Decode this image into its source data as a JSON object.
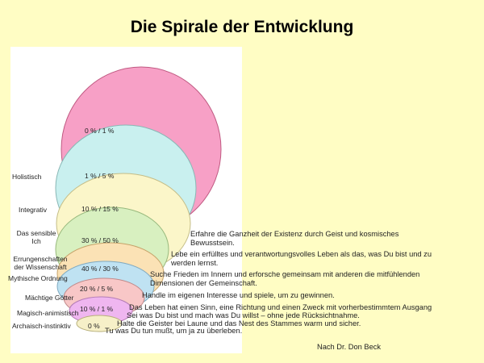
{
  "title": "Die Spirale der Entwicklung",
  "credit": "Nach Dr. Don Beck",
  "levels": [
    {
      "label": "",
      "percent": "0 % / 1 %",
      "color": "#f7a0c6",
      "description": [
        "Erfahre die Ganzheit der Existenz durch Geist und kosmisches",
        "Bewusstsein."
      ]
    },
    {
      "label": "Holistisch",
      "percent": "1 % / 5 %",
      "color": "#c9f0ef",
      "description": [
        "Lebe ein erfülltes und verantwortungsvolles Leben als das, was Du bist und zu",
        "werden lernst."
      ]
    },
    {
      "label": "Integrativ",
      "percent": "10 % / 15 %",
      "color": "#fbf6c9",
      "description": [
        "Suche Frieden im Innern und erforsche gemeinsam mit anderen die mitfühlenden",
        "Dimensionen der Gemeinschaft."
      ]
    },
    {
      "label": "Das sensible Ich",
      "percent": "30 % / 50 %",
      "color": "#d8f0c0",
      "description": [
        "Handle im eigenen Interesse und spiele, um zu gewinnen."
      ]
    },
    {
      "label": "Errungenschaften der Wissenschaft",
      "percent": "40 % / 30 %",
      "color": "#fbe2b5",
      "description": [
        "Das Leben hat einen Sinn, eine Richtung und einen Zweck mit vorherbestimmtem Ausgang"
      ]
    },
    {
      "label": "Mythische Ordnung",
      "percent": "",
      "color": "#bfe2f2",
      "description": [
        "Sei was Du bist und mach was Du willst – ohne jede Rücksichtnahme."
      ]
    },
    {
      "label": "Mächtige Götter",
      "percent": "20 % / 5 %",
      "color": "#f8c7c7",
      "description": [
        "Halte die Geister bei Laune und das Nest des Stammes warm und sicher."
      ]
    },
    {
      "label": "Magisch-animistisch",
      "percent": "10 % / 1 %",
      "color": "#efb6f0",
      "description": [
        "Tu was Du tun mußt, um ja zu überleben."
      ]
    },
    {
      "label": "Archaisch-instinktiv",
      "percent": "0 %",
      "color": "#f6f0c8",
      "description": []
    }
  ]
}
